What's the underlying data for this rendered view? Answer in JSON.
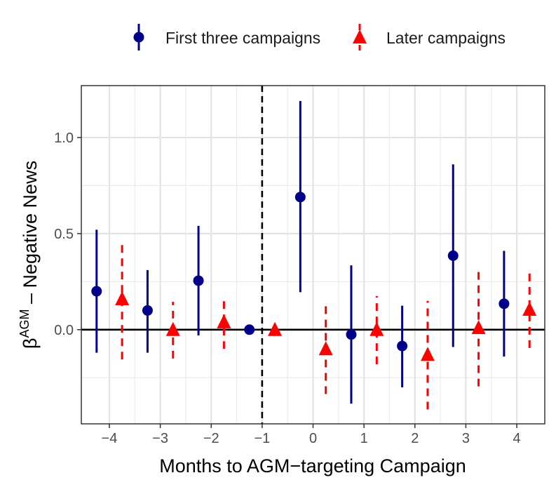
{
  "chart_data": {
    "type": "scatter",
    "title": "",
    "xlabel": "Months to AGM−targeting Campaign",
    "ylabel_prefix": "β",
    "ylabel_superscript": "AGM",
    "ylabel_suffix": " – Negative News",
    "xlim": [
      -4.55,
      4.55
    ],
    "ylim": [
      -0.49,
      1.27
    ],
    "x_ticks": [
      -4,
      -3,
      -2,
      -1,
      0,
      1,
      2,
      3,
      4
    ],
    "x_tick_labels": [
      "−4",
      "−3",
      "−2",
      "−1",
      "0",
      "1",
      "2",
      "3",
      "4"
    ],
    "y_ticks": [
      0.0,
      0.5,
      1.0
    ],
    "y_tick_labels": [
      "0.0",
      "0.5",
      "1.0"
    ],
    "y_minor_ticks": [
      -0.25,
      0.25,
      0.75
    ],
    "grid": true,
    "reference_vline_x": -1,
    "reference_hline_y": 0,
    "legend_position": "top",
    "series": [
      {
        "name": "First three campaigns",
        "color": "#00008B",
        "marker": "circle",
        "line_style": "solid",
        "points": [
          {
            "x": -4.25,
            "y": 0.2,
            "lo": -0.12,
            "hi": 0.52
          },
          {
            "x": -3.25,
            "y": 0.1,
            "lo": -0.12,
            "hi": 0.31
          },
          {
            "x": -2.25,
            "y": 0.255,
            "lo": -0.03,
            "hi": 0.54
          },
          {
            "x": -1.25,
            "y": 0.0,
            "lo": 0.0,
            "hi": 0.0
          },
          {
            "x": -0.25,
            "y": 0.69,
            "lo": 0.195,
            "hi": 1.19
          },
          {
            "x": 0.75,
            "y": -0.025,
            "lo": -0.385,
            "hi": 0.335
          },
          {
            "x": 1.75,
            "y": -0.085,
            "lo": -0.3,
            "hi": 0.125
          },
          {
            "x": 2.75,
            "y": 0.385,
            "lo": -0.09,
            "hi": 0.86
          },
          {
            "x": 3.75,
            "y": 0.135,
            "lo": -0.14,
            "hi": 0.41
          }
        ]
      },
      {
        "name": "Later campaigns",
        "color": "#FF0000",
        "marker": "triangle",
        "line_style": "dashed",
        "points": [
          {
            "x": -3.75,
            "y": 0.16,
            "lo": -0.155,
            "hi": 0.455
          },
          {
            "x": -2.75,
            "y": 0.0,
            "lo": -0.15,
            "hi": 0.145
          },
          {
            "x": -1.75,
            "y": 0.04,
            "lo": -0.1,
            "hi": 0.17
          },
          {
            "x": -0.75,
            "y": 0.0,
            "lo": 0.0,
            "hi": 0.0
          },
          {
            "x": 0.25,
            "y": -0.1,
            "lo": -0.335,
            "hi": 0.135
          },
          {
            "x": 1.25,
            "y": 0.0,
            "lo": -0.18,
            "hi": 0.175
          },
          {
            "x": 2.25,
            "y": -0.13,
            "lo": -0.415,
            "hi": 0.15
          },
          {
            "x": 3.25,
            "y": 0.01,
            "lo": -0.295,
            "hi": 0.32
          },
          {
            "x": 4.25,
            "y": 0.105,
            "lo": -0.095,
            "hi": 0.3
          }
        ]
      }
    ]
  }
}
